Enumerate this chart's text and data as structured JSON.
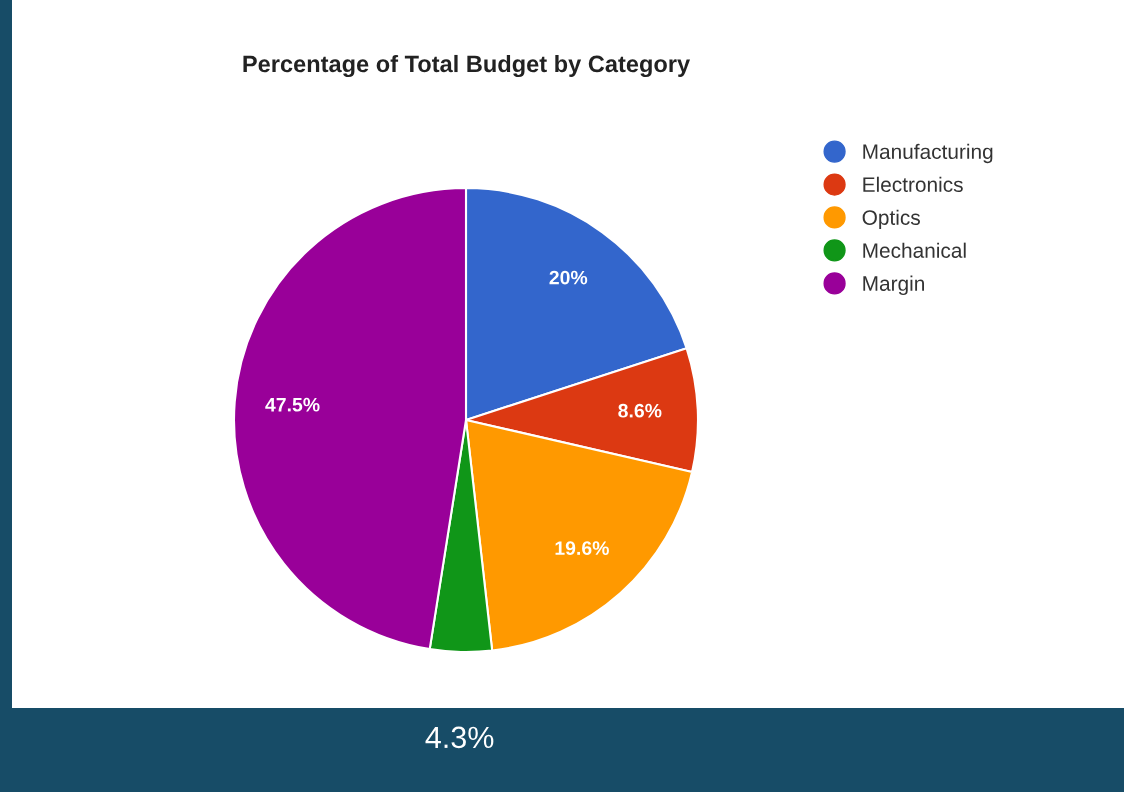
{
  "chart_data": {
    "type": "pie",
    "title": "Percentage of Total Budget by Category",
    "categories": [
      "Manufacturing",
      "Electronics",
      "Optics",
      "Mechanical",
      "Margin"
    ],
    "values": [
      20,
      8.6,
      19.6,
      4.3,
      47.5
    ],
    "colors": [
      "#3366cc",
      "#dc3912",
      "#ff9900",
      "#109618",
      "#990099"
    ],
    "value_labels": [
      "20%",
      "8.6%",
      "19.6%",
      "4.3%",
      "47.5%"
    ],
    "legend": "top right"
  }
}
